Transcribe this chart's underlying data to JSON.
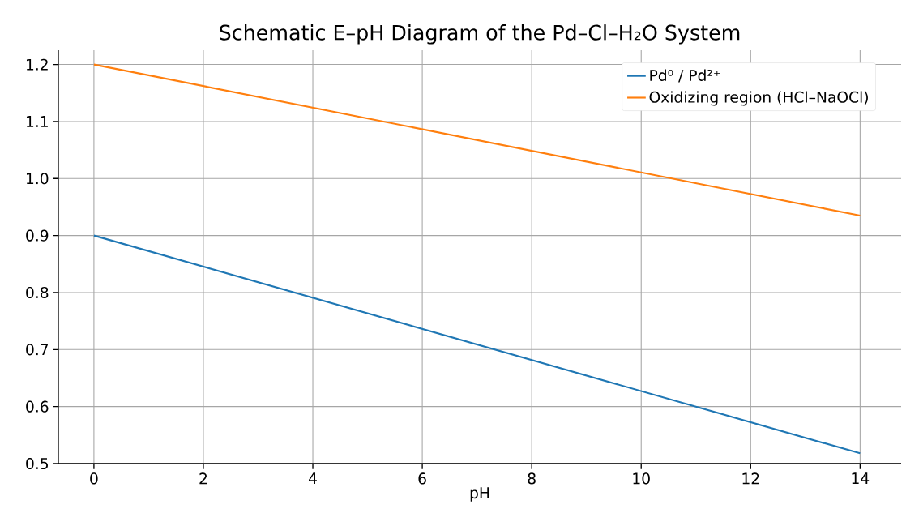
{
  "chart_data": {
    "type": "line",
    "title": "Schematic E–pH Diagram of the Pd–Cl–H₂O System",
    "xlabel": "pH",
    "x": [
      0,
      14
    ],
    "series": [
      {
        "name": "Pd⁰ / Pd²⁺",
        "color": "#1f77b4",
        "values": [
          0.9,
          0.518
        ]
      },
      {
        "name": "Oxidizing region (HCl–NaOCl)",
        "color": "#ff7f0e",
        "values": [
          1.2,
          0.935
        ]
      }
    ],
    "xlim": [
      -0.65,
      14.75
    ],
    "ylim": [
      0.5,
      1.225
    ],
    "xticks": [
      0,
      2,
      4,
      6,
      8,
      10,
      12,
      14
    ],
    "yticks": [
      0.5,
      0.6,
      0.7,
      0.8,
      0.9,
      {
        "value": 1.0,
        "label": "1.0"
      },
      1.1,
      1.2
    ],
    "grid": true,
    "legend": "top right"
  }
}
